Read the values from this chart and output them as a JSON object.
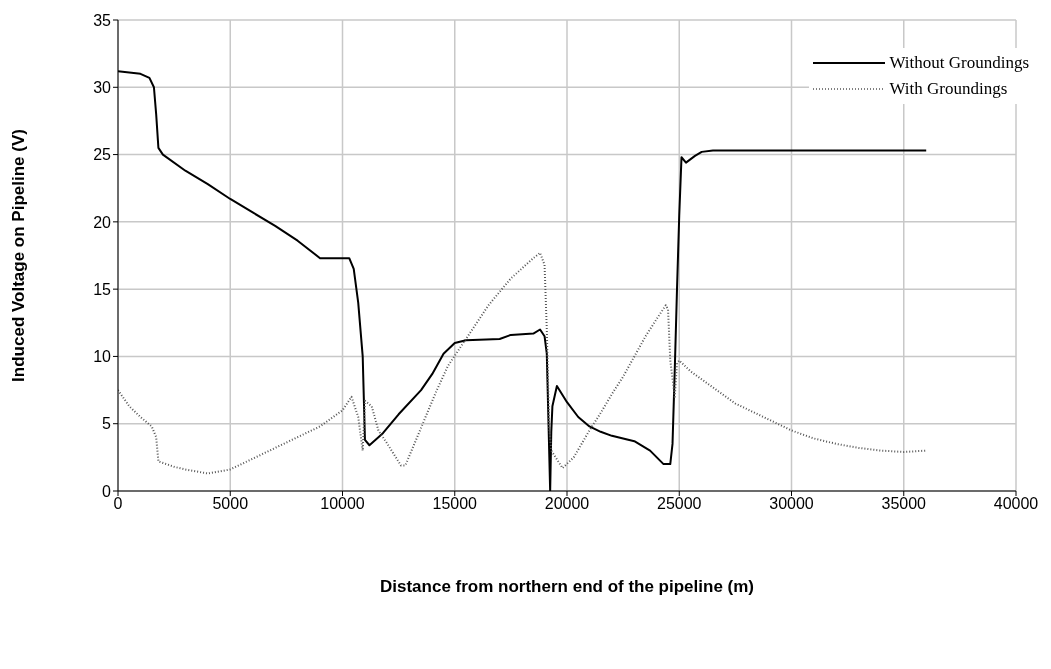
{
  "chart_data": {
    "type": "line",
    "xlabel": "Distance from northern end of the pipeline (m)",
    "ylabel": "Induced Voltage on Pipeline (V)",
    "xlim": [
      0,
      40000
    ],
    "xticks": [
      0,
      5000,
      10000,
      15000,
      20000,
      25000,
      30000,
      35000,
      40000
    ],
    "ylim": [
      0,
      35
    ],
    "yticks": [
      0,
      5,
      10,
      15,
      20,
      25,
      30,
      35
    ],
    "grid": true,
    "legend": "top right",
    "marker": "none",
    "series": [
      {
        "name": "Without Groundings",
        "color": "#000000",
        "line_style": "solid",
        "x": [
          0,
          1000,
          1400,
          1600,
          1700,
          1800,
          2000,
          3000,
          4000,
          5000,
          6000,
          7000,
          8000,
          9000,
          10300,
          10500,
          10700,
          10900,
          11000,
          11200,
          11800,
          12500,
          13500,
          14000,
          14500,
          15000,
          15500,
          17000,
          17500,
          18500,
          18800,
          19000,
          19100,
          19250,
          19300,
          19350,
          19550,
          20000,
          20500,
          21000,
          21500,
          22000,
          23000,
          23700,
          24300,
          24600,
          24700,
          24800,
          24900,
          25000,
          25100,
          25300,
          25700,
          26000,
          26500,
          36000
        ],
        "values": [
          31.2,
          31.0,
          30.7,
          30.0,
          28,
          25.5,
          25.0,
          23.8,
          22.8,
          21.7,
          20.7,
          19.7,
          18.6,
          17.3,
          17.3,
          16.5,
          14,
          10,
          3.8,
          3.4,
          4.3,
          5.7,
          7.5,
          8.7,
          10.2,
          11.0,
          11.2,
          11.3,
          11.6,
          11.7,
          12.0,
          11.5,
          10.2,
          0,
          4.4,
          6.3,
          7.8,
          6.6,
          5.5,
          4.8,
          4.4,
          4.1,
          3.7,
          3.0,
          2.0,
          2.0,
          3.5,
          9,
          15,
          20.5,
          24.8,
          24.4,
          24.9,
          25.2,
          25.3,
          25.3
        ]
      },
      {
        "name": "With Groundings",
        "color": "#555555",
        "line_style": "dotted",
        "x": [
          0,
          500,
          1000,
          1500,
          1700,
          1800,
          2500,
          3000,
          4000,
          5000,
          6000,
          7000,
          8000,
          9000,
          10000,
          10400,
          10700,
          10900,
          11000,
          11300,
          11600,
          12000,
          12600,
          12800,
          13200,
          13700,
          14200,
          14700,
          15500,
          16500,
          17500,
          18500,
          18800,
          19000,
          19100,
          19200,
          19300,
          19800,
          20300,
          21000,
          21500,
          22000,
          22500,
          23000,
          23500,
          24000,
          24400,
          24500,
          24600,
          24800,
          24900,
          25000,
          25500,
          26500,
          27500,
          29000,
          30000,
          31000,
          32000,
          33000,
          34000,
          35000,
          36000
        ],
        "values": [
          7.5,
          6.3,
          5.5,
          4.8,
          4.0,
          2.2,
          1.8,
          1.6,
          1.3,
          1.6,
          2.4,
          3.2,
          4.0,
          4.8,
          6.0,
          7.0,
          5.5,
          3.0,
          6.7,
          6.3,
          4.5,
          3.5,
          1.9,
          1.9,
          3.5,
          5.5,
          7.5,
          9.3,
          11.3,
          13.8,
          15.8,
          17.3,
          17.7,
          16.8,
          12,
          5,
          3.0,
          1.7,
          2.5,
          4.5,
          5.8,
          7.2,
          8.5,
          10,
          11.5,
          12.8,
          13.8,
          13.5,
          9.7,
          7,
          9.5,
          9.7,
          8.9,
          7.7,
          6.5,
          5.3,
          4.5,
          3.9,
          3.5,
          3.2,
          3.0,
          2.9,
          3.0
        ]
      }
    ]
  }
}
